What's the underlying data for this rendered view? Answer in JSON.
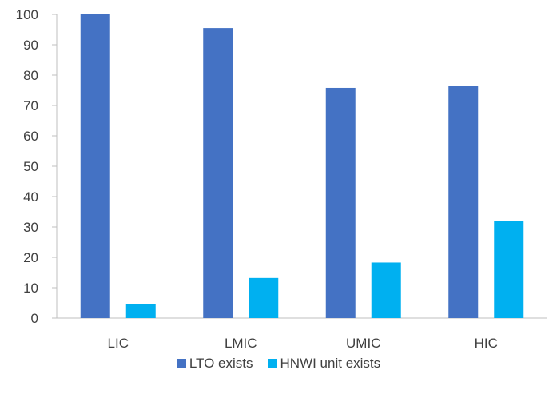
{
  "chart_data": {
    "type": "bar",
    "title": "",
    "xlabel": "",
    "ylabel": "",
    "categories": [
      "LIC",
      "LMIC",
      "UMIC",
      "HIC"
    ],
    "series": [
      {
        "name": "LTO exists",
        "color": "#4472C4",
        "values": [
          100,
          95.5,
          75.8,
          76.4
        ]
      },
      {
        "name": "HNWI unit exists",
        "color": "#00B0F0",
        "values": [
          4.7,
          13.2,
          18.3,
          32.1
        ]
      }
    ],
    "ylim": [
      0,
      100
    ],
    "yticks": [
      "0",
      "10",
      "20",
      "30",
      "40",
      "50",
      "60",
      "70",
      "80",
      "90",
      "100"
    ],
    "grid": false,
    "legend_position": "bottom"
  }
}
